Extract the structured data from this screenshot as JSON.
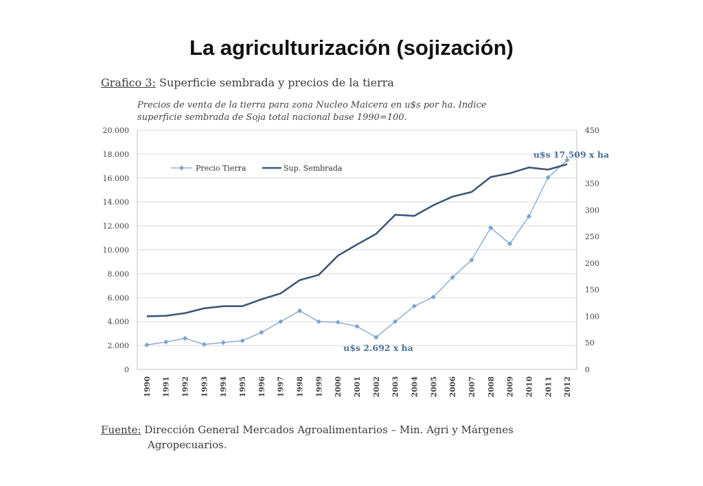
{
  "slide": {
    "title": "La agriculturización (sojización)"
  },
  "heading": {
    "label": "Grafico 3:",
    "text": "Superficie sembrada y precios de la tierra"
  },
  "subtitle": {
    "line1": "Precios de venta de la tierra para zona Nucleo Maicera en u$s por ha. Indice",
    "line2": "superficie sembrada de Soja total nacional base 1990=100."
  },
  "source": {
    "label": "Fuente:",
    "line1": "Dirección General Mercados Agroalimentarios – Min. Agri y Márgenes",
    "line2": "Agropecuarios."
  },
  "chart_data": {
    "type": "line",
    "categories": [
      "1990",
      "1991",
      "1992",
      "1993",
      "1994",
      "1995",
      "1996",
      "1997",
      "1998",
      "1999",
      "2000",
      "2001",
      "2002",
      "2003",
      "2004",
      "2005",
      "2006",
      "2007",
      "2008",
      "2009",
      "2010",
      "2011",
      "2012"
    ],
    "y_left": {
      "ticks": [
        "20.000",
        "18.000",
        "16.000",
        "14.000",
        "12.000",
        "10.000",
        "8.000",
        "6.000",
        "4.000",
        "2.000",
        "0"
      ],
      "min": 0,
      "max": 20000
    },
    "y_right": {
      "ticks": [
        "450",
        "350",
        "300",
        "250",
        "200",
        "150",
        "100",
        "50",
        "0"
      ],
      "min": 0,
      "max": 450
    },
    "series": [
      {
        "name": "Precio Tierra",
        "axis": "left",
        "color": "#7ea3cf",
        "marker": "diamond",
        "values": [
          2050,
          2300,
          2600,
          2100,
          2250,
          2400,
          3100,
          4000,
          4900,
          4000,
          3950,
          3600,
          2692,
          4000,
          5300,
          6050,
          7700,
          9150,
          11850,
          10500,
          12800,
          16050,
          17509
        ]
      },
      {
        "name": "Sup. Sembrada",
        "axis": "right",
        "color": "#3b5877",
        "values": [
          100,
          101,
          106,
          115,
          119,
          119,
          132,
          143,
          168,
          178,
          214,
          235,
          255,
          291,
          289,
          309,
          325,
          334,
          362,
          369,
          380,
          376,
          386
        ]
      }
    ],
    "annotations": [
      {
        "text": "u$s 17.509 x ha",
        "color": "#4a6e98"
      },
      {
        "text": "u$s 2.692 x ha",
        "color": "#4a6e98"
      }
    ],
    "legend_position": "top-left",
    "grid": "horizontal"
  }
}
